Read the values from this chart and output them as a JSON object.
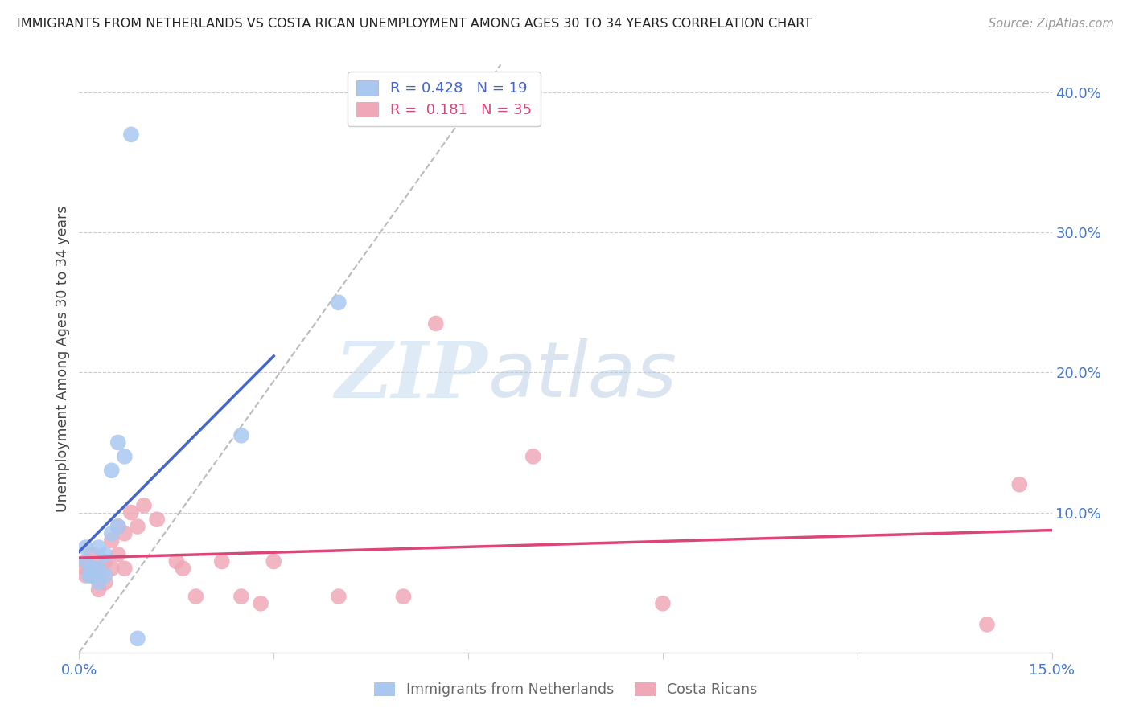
{
  "title": "IMMIGRANTS FROM NETHERLANDS VS COSTA RICAN UNEMPLOYMENT AMONG AGES 30 TO 34 YEARS CORRELATION CHART",
  "source": "Source: ZipAtlas.com",
  "ylabel": "Unemployment Among Ages 30 to 34 years",
  "xlim": [
    0.0,
    0.15
  ],
  "ylim": [
    0.0,
    0.42
  ],
  "xticks": [
    0.0,
    0.03,
    0.06,
    0.09,
    0.12,
    0.15
  ],
  "yticks_right": [
    0.1,
    0.2,
    0.3,
    0.4
  ],
  "ytick_labels_right": [
    "10.0%",
    "20.0%",
    "30.0%",
    "40.0%"
  ],
  "xtick_labels": [
    "0.0%",
    "",
    "",
    "",
    "",
    "15.0%"
  ],
  "legend1_r": "0.428",
  "legend1_n": "19",
  "legend2_r": "0.181",
  "legend2_n": "35",
  "netherlands_color": "#a8c8f0",
  "cr_color": "#f0a8b8",
  "netherlands_line_color": "#4466cc",
  "cr_line_color": "#dd4477",
  "dashed_line_color": "#bbbbbb",
  "watermark_zip": "ZIP",
  "watermark_atlas": "atlas",
  "netherlands_x": [
    0.001,
    0.001,
    0.0015,
    0.002,
    0.002,
    0.003,
    0.003,
    0.003,
    0.004,
    0.004,
    0.005,
    0.005,
    0.006,
    0.006,
    0.007,
    0.008,
    0.009,
    0.025,
    0.04
  ],
  "netherlands_y": [
    0.065,
    0.075,
    0.055,
    0.06,
    0.055,
    0.06,
    0.05,
    0.075,
    0.07,
    0.055,
    0.13,
    0.085,
    0.15,
    0.09,
    0.14,
    0.37,
    0.01,
    0.155,
    0.25
  ],
  "cr_x": [
    0.001,
    0.001,
    0.001,
    0.002,
    0.002,
    0.002,
    0.003,
    0.003,
    0.003,
    0.004,
    0.004,
    0.005,
    0.005,
    0.006,
    0.006,
    0.007,
    0.007,
    0.008,
    0.009,
    0.01,
    0.012,
    0.015,
    0.016,
    0.018,
    0.022,
    0.025,
    0.028,
    0.03,
    0.04,
    0.05,
    0.055,
    0.07,
    0.09,
    0.14,
    0.145
  ],
  "cr_y": [
    0.065,
    0.055,
    0.06,
    0.07,
    0.055,
    0.06,
    0.055,
    0.045,
    0.06,
    0.065,
    0.05,
    0.08,
    0.06,
    0.09,
    0.07,
    0.085,
    0.06,
    0.1,
    0.09,
    0.105,
    0.095,
    0.065,
    0.06,
    0.04,
    0.065,
    0.04,
    0.035,
    0.065,
    0.04,
    0.04,
    0.235,
    0.14,
    0.035,
    0.02,
    0.12
  ],
  "nl_line_x0": 0.0,
  "nl_line_x1": 0.03,
  "cr_line_x0": 0.0,
  "cr_line_x1": 0.15,
  "dash_line_x0": 0.0,
  "dash_line_x1": 0.065,
  "dash_line_y0": 0.0,
  "dash_line_y1": 0.42
}
